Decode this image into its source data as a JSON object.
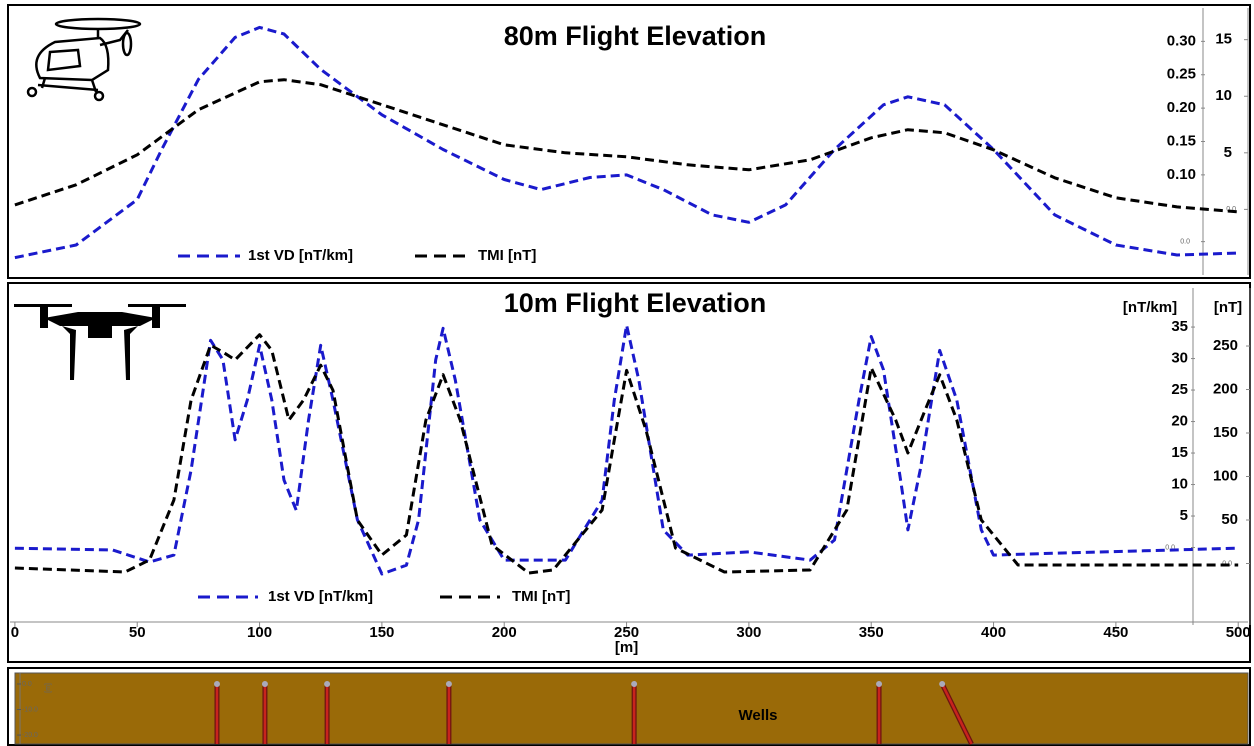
{
  "chart_data": [
    {
      "type": "line",
      "title": "80m Flight Elevation",
      "xlim": [
        -2,
        504
      ],
      "ylim": [
        -0.05,
        0.35
      ],
      "yticks": [
        {
          "value": 0,
          "label": "0.0"
        },
        {
          "value": 0.1,
          "label": "0.10"
        },
        0.15,
        {
          "value": 0.2,
          "label": "0.20"
        },
        0.25,
        {
          "value": 0.3,
          "label": "0.30"
        }
      ],
      "y2lim": [
        -5.8,
        17.8
      ],
      "y2ticks": [
        {
          "value": 0,
          "label": "0.0"
        },
        5,
        10,
        15
      ],
      "series": [
        {
          "name": "1st VD [nT/km]",
          "color": "#1a1acc",
          "x": [
            0,
            25,
            50,
            60,
            75,
            90,
            100,
            110,
            125,
            150,
            175,
            200,
            215,
            235,
            250,
            265,
            285,
            300,
            315,
            335,
            355,
            365,
            380,
            400,
            425,
            450,
            475,
            500
          ],
          "values": [
            -0.024,
            -0.005,
            0.063,
            0.138,
            0.243,
            0.306,
            0.321,
            0.311,
            0.258,
            0.19,
            0.138,
            0.093,
            0.078,
            0.096,
            0.1,
            0.078,
            0.04,
            0.029,
            0.055,
            0.138,
            0.205,
            0.217,
            0.205,
            0.138,
            0.04,
            -0.005,
            -0.02,
            -0.017
          ]
        },
        {
          "name": "TMI [nT]",
          "color": "#000000",
          "axis": "y2",
          "x": [
            0,
            25,
            50,
            75,
            100,
            110,
            125,
            150,
            175,
            200,
            225,
            250,
            275,
            300,
            325,
            350,
            365,
            380,
            400,
            425,
            450,
            475,
            500
          ],
          "values": [
            0.4,
            2.17,
            4.82,
            8.81,
            11.28,
            11.46,
            11.02,
            9.25,
            7.48,
            5.71,
            5.0,
            4.65,
            3.94,
            3.5,
            4.38,
            6.33,
            7.04,
            6.77,
            5.27,
            2.79,
            1.02,
            0.22,
            -0.22
          ]
        }
      ]
    },
    {
      "type": "line",
      "title": "10m Flight Elevation",
      "x_label": "[m]",
      "y_label": "[nT/km]",
      "y2_label": "[nT]",
      "xlim": [
        -2,
        504
      ],
      "xticks": [
        0,
        50,
        100,
        150,
        200,
        250,
        300,
        350,
        400,
        450,
        500
      ],
      "ylim": [
        -12.3,
        41.2
      ],
      "yticks": [
        {
          "value": 0,
          "label": "0.0"
        },
        5,
        10,
        15,
        20,
        25,
        30,
        35
      ],
      "y2lim": [
        -70.7,
        316.7
      ],
      "y2ticks": [
        {
          "value": 0,
          "label": "0.0"
        },
        50,
        100,
        150,
        200,
        250
      ],
      "series": [
        {
          "name": "1st VD [nT/km]",
          "color": "#1a1acc",
          "x": [
            0,
            40,
            55,
            65,
            72,
            80,
            85,
            90,
            95,
            100,
            105,
            110,
            115,
            120,
            125,
            130,
            140,
            150,
            160,
            165,
            172,
            175,
            180,
            190,
            200,
            225,
            240,
            245,
            250,
            255,
            265,
            275,
            300,
            325,
            335,
            345,
            350,
            355,
            362,
            365,
            370,
            378,
            385,
            395,
            400,
            425,
            500
          ],
          "values": [
            -0.1,
            -0.4,
            -2.3,
            -1.2,
            12.3,
            32.9,
            29.8,
            17.1,
            23.4,
            32.1,
            23.4,
            10.7,
            5.9,
            20.2,
            32.1,
            23.4,
            4.4,
            -4.2,
            -2.8,
            4.4,
            29.8,
            34.8,
            26.6,
            4.4,
            -2.0,
            -2.0,
            7.5,
            23.4,
            35.3,
            26.6,
            2.8,
            -1.2,
            -0.7,
            -2.0,
            1.2,
            23.4,
            33.5,
            28.2,
            10.7,
            2.8,
            12.3,
            31.3,
            23.4,
            2.8,
            -1.2,
            -0.9,
            -0.1
          ]
        },
        {
          "name": "TMI [nT]",
          "color": "#000000",
          "axis": "y2",
          "x": [
            0,
            45,
            55,
            65,
            72,
            80,
            85,
            90,
            100,
            105,
            112,
            118,
            125,
            130,
            140,
            150,
            160,
            168,
            175,
            182,
            195,
            210,
            220,
            240,
            245,
            250,
            258,
            270,
            290,
            325,
            340,
            350,
            360,
            365,
            372,
            378,
            385,
            395,
            410,
            500
          ],
          "values": [
            -5.2,
            -9.8,
            4.0,
            73.0,
            188,
            251,
            243,
            234,
            263,
            245,
            165,
            188,
            228,
            199,
            50,
            9.8,
            32.8,
            165,
            217,
            165,
            21.3,
            -10.9,
            -7.5,
            61.5,
            142,
            222,
            153,
            17.8,
            -9.8,
            -7.5,
            61.5,
            225,
            165,
            127,
            176,
            217,
            165,
            50,
            -1.7,
            -1.7
          ]
        }
      ]
    },
    {
      "type": "section",
      "y_label": "[m]",
      "annotation": "Wells",
      "xlim": [
        -2,
        504
      ],
      "ylim": [
        -23.5,
        4.3
      ],
      "yticks": [
        {
          "value": 0,
          "label": "0.0"
        },
        {
          "value": -10,
          "label": "-10.0"
        },
        {
          "value": -20,
          "label": "-20.0"
        }
      ],
      "color": "#9a6a08",
      "well_color": "#c8231e",
      "wells": [
        82.6,
        102.2,
        127.6,
        177.4,
        253.1,
        353.2,
        379
      ],
      "wells_end": [
        82.6,
        102.2,
        127.6,
        177.4,
        253.1,
        353.2,
        391
      ]
    }
  ]
}
